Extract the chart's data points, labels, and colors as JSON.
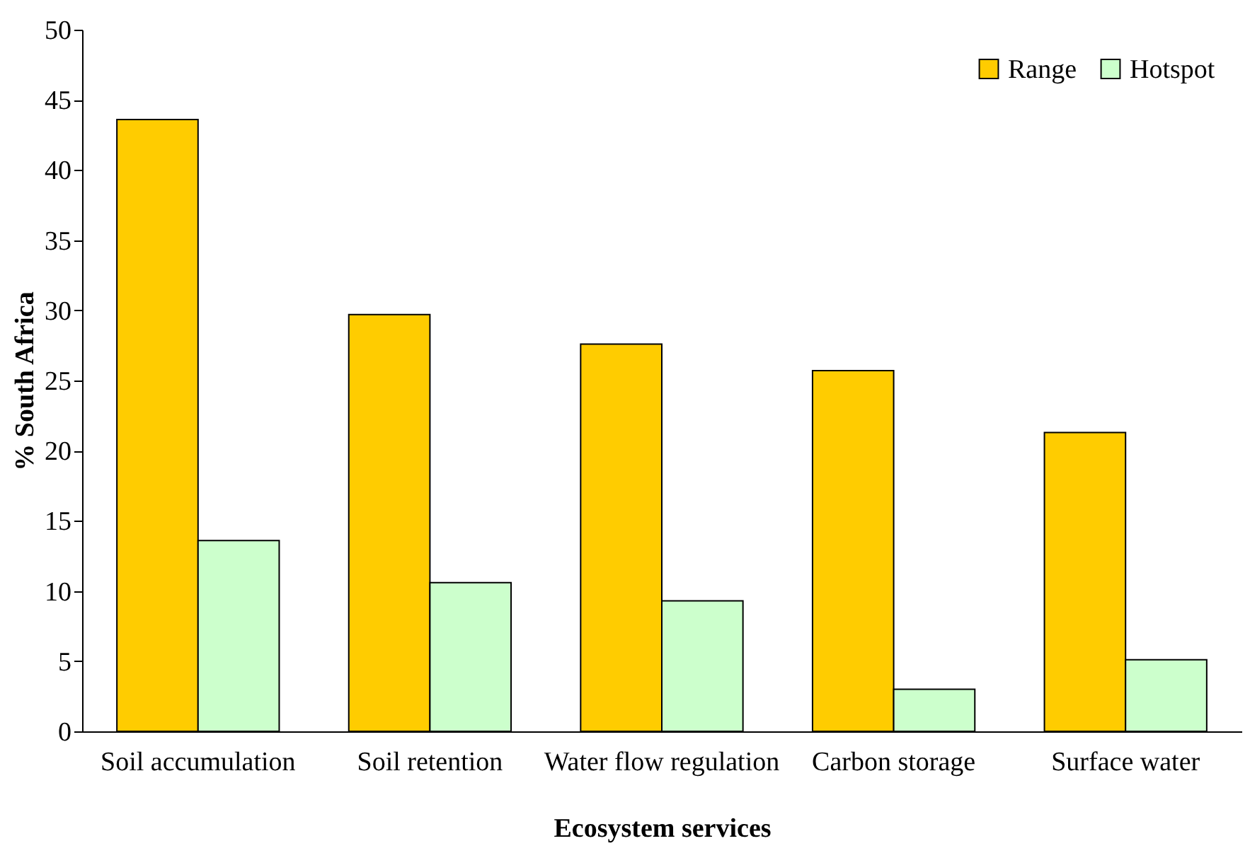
{
  "chart_data": {
    "type": "bar",
    "xlabel": "Ecosystem services",
    "ylabel": "% South Africa",
    "categories": [
      "Soil accumulation",
      "Soil retention",
      "Water flow regulation",
      "Carbon storage",
      "Surface water"
    ],
    "series": [
      {
        "name": "Range",
        "color": "#ffcc00",
        "values": [
          43.6,
          29.7,
          27.6,
          25.7,
          21.3
        ]
      },
      {
        "name": "Hotspot",
        "color": "#ccffcc",
        "values": [
          13.6,
          10.6,
          9.3,
          3.0,
          5.1
        ]
      }
    ],
    "ylim": [
      0,
      50
    ],
    "yticks": [
      0,
      5,
      10,
      15,
      20,
      25,
      30,
      35,
      40,
      45,
      50
    ],
    "grid": false,
    "legend": "top right"
  }
}
